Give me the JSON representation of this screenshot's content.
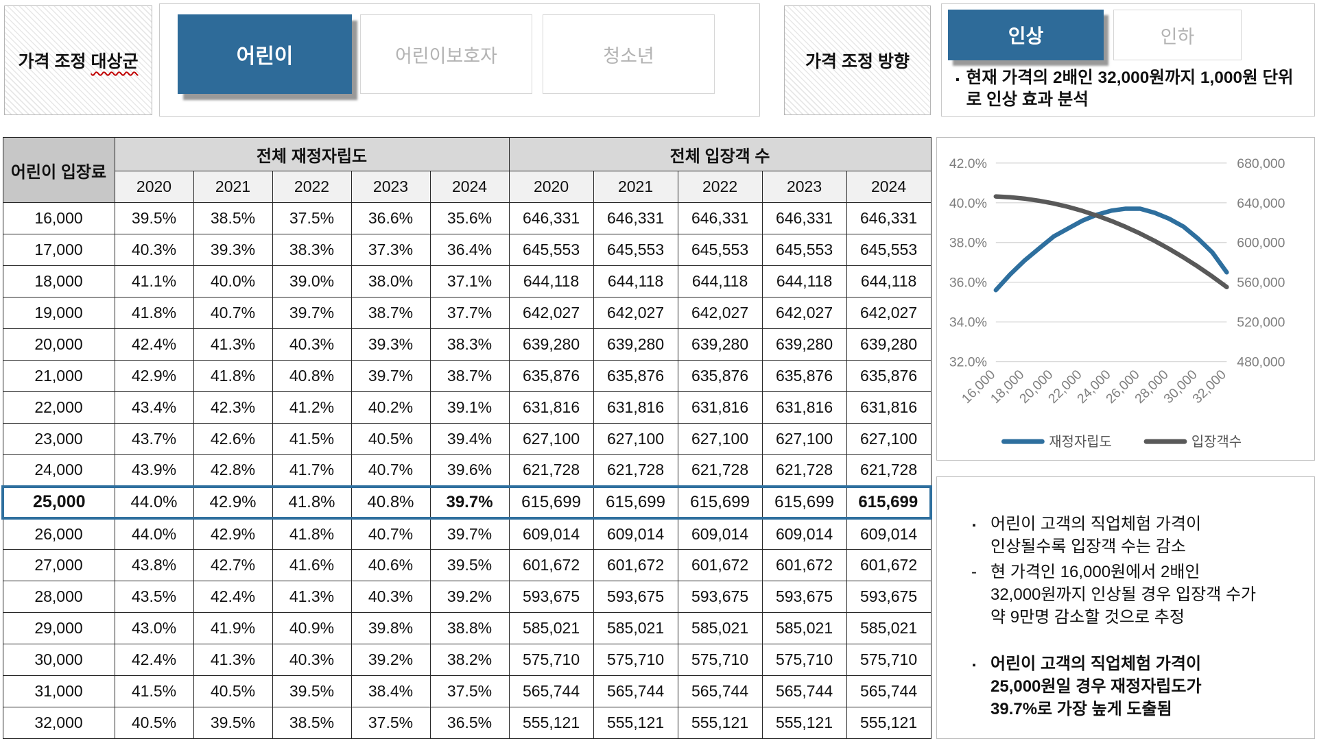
{
  "header": {
    "target_group": {
      "label_prefix": "가격 조정 ",
      "label_underlined": "대상군",
      "buttons": [
        {
          "label": "어린이",
          "selected": true
        },
        {
          "label": "어린이보호자",
          "selected": false
        },
        {
          "label": "청소년",
          "selected": false
        }
      ]
    },
    "direction": {
      "label": "가격 조정 방향",
      "buttons": [
        {
          "label": "인상",
          "selected": true
        },
        {
          "label": "인하",
          "selected": false
        }
      ],
      "note_marker": "▪",
      "note": "현재 가격의 2배인 32,000원까지 1,000원 단위로 인상 효과 분석"
    }
  },
  "table": {
    "row_header": "어린이 입장료",
    "group_headers": [
      "전체 재정자립도",
      "전체 입장객 수"
    ],
    "years": [
      "2020",
      "2021",
      "2022",
      "2023",
      "2024"
    ],
    "highlight_price": "25,000",
    "rows": [
      {
        "price": "16,000",
        "rates": [
          "39.5%",
          "38.5%",
          "37.5%",
          "36.6%",
          "35.6%"
        ],
        "visitors": [
          "646,331",
          "646,331",
          "646,331",
          "646,331",
          "646,331"
        ]
      },
      {
        "price": "17,000",
        "rates": [
          "40.3%",
          "39.3%",
          "38.3%",
          "37.3%",
          "36.4%"
        ],
        "visitors": [
          "645,553",
          "645,553",
          "645,553",
          "645,553",
          "645,553"
        ]
      },
      {
        "price": "18,000",
        "rates": [
          "41.1%",
          "40.0%",
          "39.0%",
          "38.0%",
          "37.1%"
        ],
        "visitors": [
          "644,118",
          "644,118",
          "644,118",
          "644,118",
          "644,118"
        ]
      },
      {
        "price": "19,000",
        "rates": [
          "41.8%",
          "40.7%",
          "39.7%",
          "38.7%",
          "37.7%"
        ],
        "visitors": [
          "642,027",
          "642,027",
          "642,027",
          "642,027",
          "642,027"
        ]
      },
      {
        "price": "20,000",
        "rates": [
          "42.4%",
          "41.3%",
          "40.3%",
          "39.3%",
          "38.3%"
        ],
        "visitors": [
          "639,280",
          "639,280",
          "639,280",
          "639,280",
          "639,280"
        ]
      },
      {
        "price": "21,000",
        "rates": [
          "42.9%",
          "41.8%",
          "40.8%",
          "39.7%",
          "38.7%"
        ],
        "visitors": [
          "635,876",
          "635,876",
          "635,876",
          "635,876",
          "635,876"
        ]
      },
      {
        "price": "22,000",
        "rates": [
          "43.4%",
          "42.3%",
          "41.2%",
          "40.2%",
          "39.1%"
        ],
        "visitors": [
          "631,816",
          "631,816",
          "631,816",
          "631,816",
          "631,816"
        ]
      },
      {
        "price": "23,000",
        "rates": [
          "43.7%",
          "42.6%",
          "41.5%",
          "40.5%",
          "39.4%"
        ],
        "visitors": [
          "627,100",
          "627,100",
          "627,100",
          "627,100",
          "627,100"
        ]
      },
      {
        "price": "24,000",
        "rates": [
          "43.9%",
          "42.8%",
          "41.7%",
          "40.7%",
          "39.6%"
        ],
        "visitors": [
          "621,728",
          "621,728",
          "621,728",
          "621,728",
          "621,728"
        ]
      },
      {
        "price": "25,000",
        "rates": [
          "44.0%",
          "42.9%",
          "41.8%",
          "40.8%",
          "39.7%"
        ],
        "visitors": [
          "615,699",
          "615,699",
          "615,699",
          "615,699",
          "615,699"
        ]
      },
      {
        "price": "26,000",
        "rates": [
          "44.0%",
          "42.9%",
          "41.8%",
          "40.7%",
          "39.7%"
        ],
        "visitors": [
          "609,014",
          "609,014",
          "609,014",
          "609,014",
          "609,014"
        ]
      },
      {
        "price": "27,000",
        "rates": [
          "43.8%",
          "42.7%",
          "41.6%",
          "40.6%",
          "39.5%"
        ],
        "visitors": [
          "601,672",
          "601,672",
          "601,672",
          "601,672",
          "601,672"
        ]
      },
      {
        "price": "28,000",
        "rates": [
          "43.5%",
          "42.4%",
          "41.3%",
          "40.3%",
          "39.2%"
        ],
        "visitors": [
          "593,675",
          "593,675",
          "593,675",
          "593,675",
          "593,675"
        ]
      },
      {
        "price": "29,000",
        "rates": [
          "43.0%",
          "41.9%",
          "40.9%",
          "39.8%",
          "38.8%"
        ],
        "visitors": [
          "585,021",
          "585,021",
          "585,021",
          "585,021",
          "585,021"
        ]
      },
      {
        "price": "30,000",
        "rates": [
          "42.4%",
          "41.3%",
          "40.3%",
          "39.2%",
          "38.2%"
        ],
        "visitors": [
          "575,710",
          "575,710",
          "575,710",
          "575,710",
          "575,710"
        ]
      },
      {
        "price": "31,000",
        "rates": [
          "41.5%",
          "40.5%",
          "39.5%",
          "38.4%",
          "37.5%"
        ],
        "visitors": [
          "565,744",
          "565,744",
          "565,744",
          "565,744",
          "565,744"
        ]
      },
      {
        "price": "32,000",
        "rates": [
          "40.5%",
          "39.5%",
          "38.5%",
          "37.5%",
          "36.5%"
        ],
        "visitors": [
          "555,121",
          "555,121",
          "555,121",
          "555,121",
          "555,121"
        ]
      }
    ]
  },
  "chart_data": {
    "type": "line",
    "x": [
      16000,
      17000,
      18000,
      19000,
      20000,
      21000,
      22000,
      23000,
      24000,
      25000,
      26000,
      27000,
      28000,
      29000,
      30000,
      31000,
      32000
    ],
    "x_tick_labels": [
      "16,000",
      "18,000",
      "20,000",
      "22,000",
      "24,000",
      "26,000",
      "28,000",
      "30,000",
      "32,000"
    ],
    "series": [
      {
        "name": "재정자립도",
        "axis": "left",
        "color": "#2e6f9e",
        "values": [
          35.6,
          36.4,
          37.1,
          37.7,
          38.3,
          38.7,
          39.1,
          39.4,
          39.6,
          39.7,
          39.7,
          39.5,
          39.2,
          38.8,
          38.2,
          37.5,
          36.5
        ]
      },
      {
        "name": "입장객수",
        "axis": "right",
        "color": "#595959",
        "values": [
          646331,
          645553,
          644118,
          642027,
          639280,
          635876,
          631816,
          627100,
          621728,
          615699,
          609014,
          601672,
          593675,
          585021,
          575710,
          565744,
          555121
        ]
      }
    ],
    "left_axis": {
      "min": 32,
      "max": 42,
      "ticks": [
        "42.0%",
        "40.0%",
        "38.0%",
        "36.0%",
        "34.0%",
        "32.0%"
      ]
    },
    "right_axis": {
      "min": 480000,
      "max": 680000,
      "ticks": [
        "680,000",
        "640,000",
        "600,000",
        "560,000",
        "520,000",
        "480,000"
      ]
    },
    "grid": true,
    "legend_position": "bottom"
  },
  "insights": {
    "items": [
      {
        "marker": "▪",
        "bold": false,
        "lines": [
          "어린이 고객의 직업체험 가격이",
          "인상될수록 입장객 수는 감소"
        ]
      },
      {
        "marker": "-",
        "bold": false,
        "lines": [
          "현 가격인 16,000원에서 2배인",
          "32,000원까지 인상될 경우 입장객 수가",
          "약 9만명 감소할 것으로 추정"
        ]
      },
      {
        "marker": "▪",
        "bold": true,
        "lines": [
          "어린이 고객의 직업체험 가격이",
          "25,000원일 경우 재정자립도가",
          "39.7%로 가장 높게 도출됨"
        ]
      }
    ]
  },
  "colors": {
    "accent_blue": "#2e6b99",
    "line_blue": "#2e6f9e",
    "line_gray": "#595959",
    "highlight_border": "#2e6f9e"
  }
}
